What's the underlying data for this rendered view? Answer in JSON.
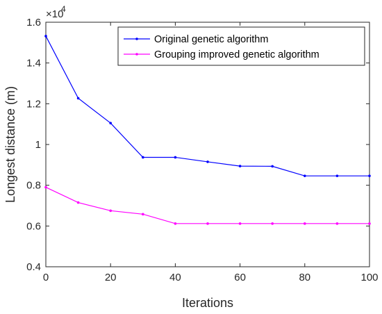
{
  "chart_data": {
    "type": "line",
    "xlabel": "Iterations",
    "ylabel": "Longest distance (m)",
    "y_exponent_base": "×10",
    "y_exponent": "4",
    "xlim": [
      0,
      100
    ],
    "ylim": [
      0.4,
      1.6
    ],
    "y_multiplier": 10000,
    "x_ticks": [
      "0",
      "20",
      "40",
      "60",
      "80",
      "100"
    ],
    "y_ticks": [
      "0.4",
      "0.6",
      "0.8",
      "1",
      "1.2",
      "1.4",
      "1.6"
    ],
    "x": [
      0,
      10,
      20,
      30,
      40,
      50,
      60,
      70,
      80,
      90,
      100
    ],
    "series": [
      {
        "name": "Original genetic algorithm",
        "color": "#0000ff",
        "values": [
          1.532,
          1.227,
          1.105,
          0.937,
          0.937,
          0.915,
          0.894,
          0.893,
          0.846,
          0.846,
          0.846
        ]
      },
      {
        "name": "Grouping improved genetic algorithm",
        "color": "#ff00ff",
        "values": [
          0.79,
          0.715,
          0.675,
          0.658,
          0.612,
          0.612,
          0.612,
          0.612,
          0.612,
          0.612,
          0.612
        ]
      }
    ],
    "legend_position": "top-right",
    "grid": false
  }
}
